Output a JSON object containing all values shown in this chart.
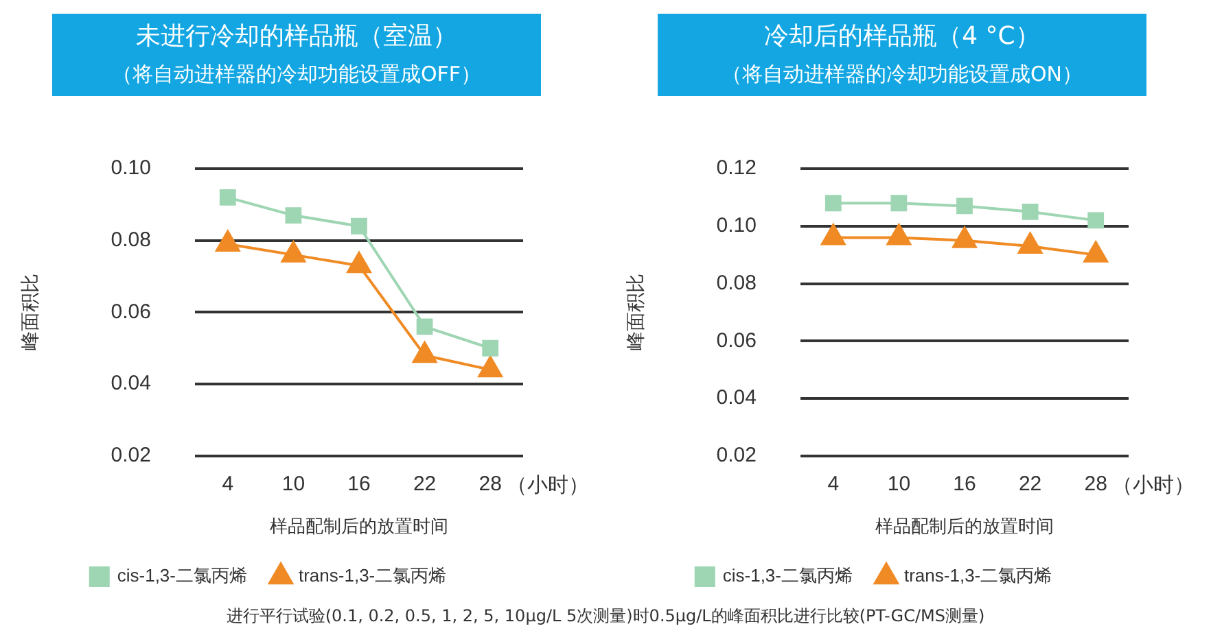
{
  "chart_data": [
    {
      "type": "line",
      "title": "未进行冷却的样品瓶（室温）",
      "subtitle": "（将自动进样器的冷却功能设置成OFF）",
      "xlabel": "样品配制后的放置时间",
      "ylabel": "峰面积比",
      "categories": [
        "4",
        "10",
        "16",
        "22",
        "28"
      ],
      "series": [
        {
          "name": "cis-1,3-二氯丙烯",
          "color": "#9ed5b2",
          "marker": "square",
          "values": [
            0.092,
            0.087,
            0.084,
            0.056,
            0.05
          ]
        },
        {
          "name": "trans-1,3-二氯丙烯",
          "color": "#f08a24",
          "marker": "triangle",
          "values": [
            0.079,
            0.076,
            0.073,
            0.048,
            0.044
          ]
        }
      ],
      "ylim": [
        0.02,
        0.1
      ],
      "yticks": [
        {
          "value": 0.02,
          "label": "0.02"
        },
        {
          "value": 0.04,
          "label": "0.04"
        },
        {
          "value": 0.06,
          "label": "0.06"
        },
        {
          "value": 0.08,
          "label": "0.08"
        },
        {
          "value": 0.1,
          "label": "0.10"
        }
      ],
      "grid": "y",
      "legend": "bottom",
      "line_style": "solid",
      "annotations": [
        "（小时）",
        "进行平行试验(0.1, 0.2, 0.5, 1, 2, 5, 10μg/L 5次测量)时0.5μg/L的峰面积比进行比较(PT-GC/MS测量)"
      ]
    },
    {
      "type": "line",
      "title": "冷却后的样品瓶（4 °C）",
      "subtitle": "（将自动进样器的冷却功能设置成ON）",
      "xlabel": "样品配制后的放置时间",
      "ylabel": "峰面积比",
      "categories": [
        "4",
        "10",
        "16",
        "22",
        "28"
      ],
      "series": [
        {
          "name": "cis-1,3-二氯丙烯",
          "color": "#9ed5b2",
          "marker": "square",
          "values": [
            0.108,
            0.108,
            0.107,
            0.105,
            0.102
          ]
        },
        {
          "name": "trans-1,3-二氯丙烯",
          "color": "#f08a24",
          "marker": "triangle",
          "values": [
            0.096,
            0.096,
            0.095,
            0.093,
            0.09
          ]
        }
      ],
      "ylim": [
        0.02,
        0.12
      ],
      "yticks": [
        {
          "value": 0.02,
          "label": "0.02"
        },
        {
          "value": 0.04,
          "label": "0.04"
        },
        {
          "value": 0.06,
          "label": "0.06"
        },
        {
          "value": 0.08,
          "label": "0.08"
        },
        {
          "value": 0.1,
          "label": "0.10"
        },
        {
          "value": 0.12,
          "label": "0.12"
        }
      ],
      "grid": "y",
      "legend": "bottom",
      "line_style": "solid",
      "annotations": [
        "（小时）"
      ]
    }
  ]
}
